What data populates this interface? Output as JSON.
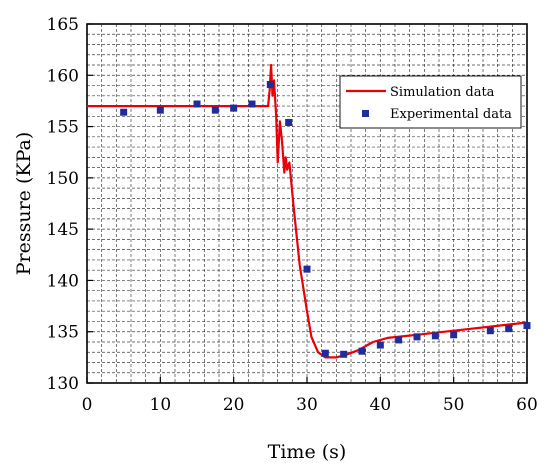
{
  "chart_data": {
    "type": "line",
    "xlabel": "Time (s)",
    "ylabel": "Pressure (KPa)",
    "xlim": [
      0,
      60
    ],
    "ylim": [
      130,
      165
    ],
    "x_ticks": [
      0,
      10,
      20,
      30,
      40,
      50,
      60
    ],
    "y_ticks": [
      130,
      135,
      140,
      145,
      150,
      155,
      160,
      165
    ],
    "x_tick_labels": [
      "0",
      "10",
      "20",
      "30",
      "40",
      "50",
      "60"
    ],
    "y_tick_labels": [
      "130",
      "135",
      "140",
      "145",
      "150",
      "155",
      "160",
      "165"
    ],
    "grid": true,
    "legend_position": "top-right",
    "series": [
      {
        "name": "Simulation data",
        "kind": "line",
        "color": "#e8000b",
        "points": [
          [
            0,
            157
          ],
          [
            24.7,
            157
          ],
          [
            24.9,
            158.5
          ],
          [
            25.1,
            161
          ],
          [
            25.3,
            158
          ],
          [
            25.5,
            159.5
          ],
          [
            25.8,
            156
          ],
          [
            26.0,
            151.5
          ],
          [
            26.3,
            155.5
          ],
          [
            26.6,
            153.5
          ],
          [
            26.9,
            150.5
          ],
          [
            27.1,
            152
          ],
          [
            27.3,
            150.8
          ],
          [
            27.6,
            151.5
          ],
          [
            28.2,
            147
          ],
          [
            29.0,
            141.5
          ],
          [
            30.0,
            137
          ],
          [
            30.6,
            134.5
          ],
          [
            31.5,
            133
          ],
          [
            32.5,
            132.5
          ],
          [
            34.0,
            132.5
          ],
          [
            35.5,
            132.8
          ],
          [
            37.0,
            133.2
          ],
          [
            39.0,
            134
          ],
          [
            41.0,
            134.4
          ],
          [
            45.0,
            134.7
          ],
          [
            50.0,
            135.1
          ],
          [
            55.0,
            135.5
          ],
          [
            60.0,
            135.9
          ]
        ]
      },
      {
        "name": "Experimental data",
        "kind": "scatter",
        "color": "#1f2d9a",
        "points": [
          [
            5,
            156.4
          ],
          [
            10,
            156.6
          ],
          [
            15,
            157.2
          ],
          [
            17.5,
            156.6
          ],
          [
            20,
            156.8
          ],
          [
            22.5,
            157.2
          ],
          [
            25,
            159.1
          ],
          [
            27.5,
            155.4
          ],
          [
            30,
            141.1
          ],
          [
            32.5,
            132.9
          ],
          [
            35,
            132.8
          ],
          [
            37.5,
            133.1
          ],
          [
            40,
            133.7
          ],
          [
            42.5,
            134.2
          ],
          [
            45,
            134.5
          ],
          [
            47.5,
            134.6
          ],
          [
            50,
            134.7
          ],
          [
            55,
            135.1
          ],
          [
            57.5,
            135.3
          ],
          [
            60,
            135.6
          ]
        ]
      }
    ]
  }
}
